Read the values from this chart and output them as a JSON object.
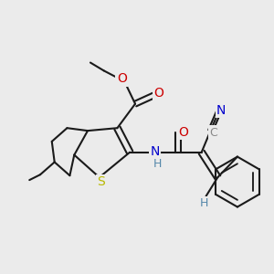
{
  "background_color": "#ebebeb",
  "figsize": [
    3.0,
    3.0
  ],
  "dpi": 100,
  "bond_color": "#1a1a1a",
  "bond_lw": 1.5,
  "colors": {
    "S": "#b8b800",
    "N": "#0000cc",
    "H": "#5588aa",
    "O": "#cc0000",
    "C_gray": "#888888",
    "C_black": "#1a1a1a"
  }
}
